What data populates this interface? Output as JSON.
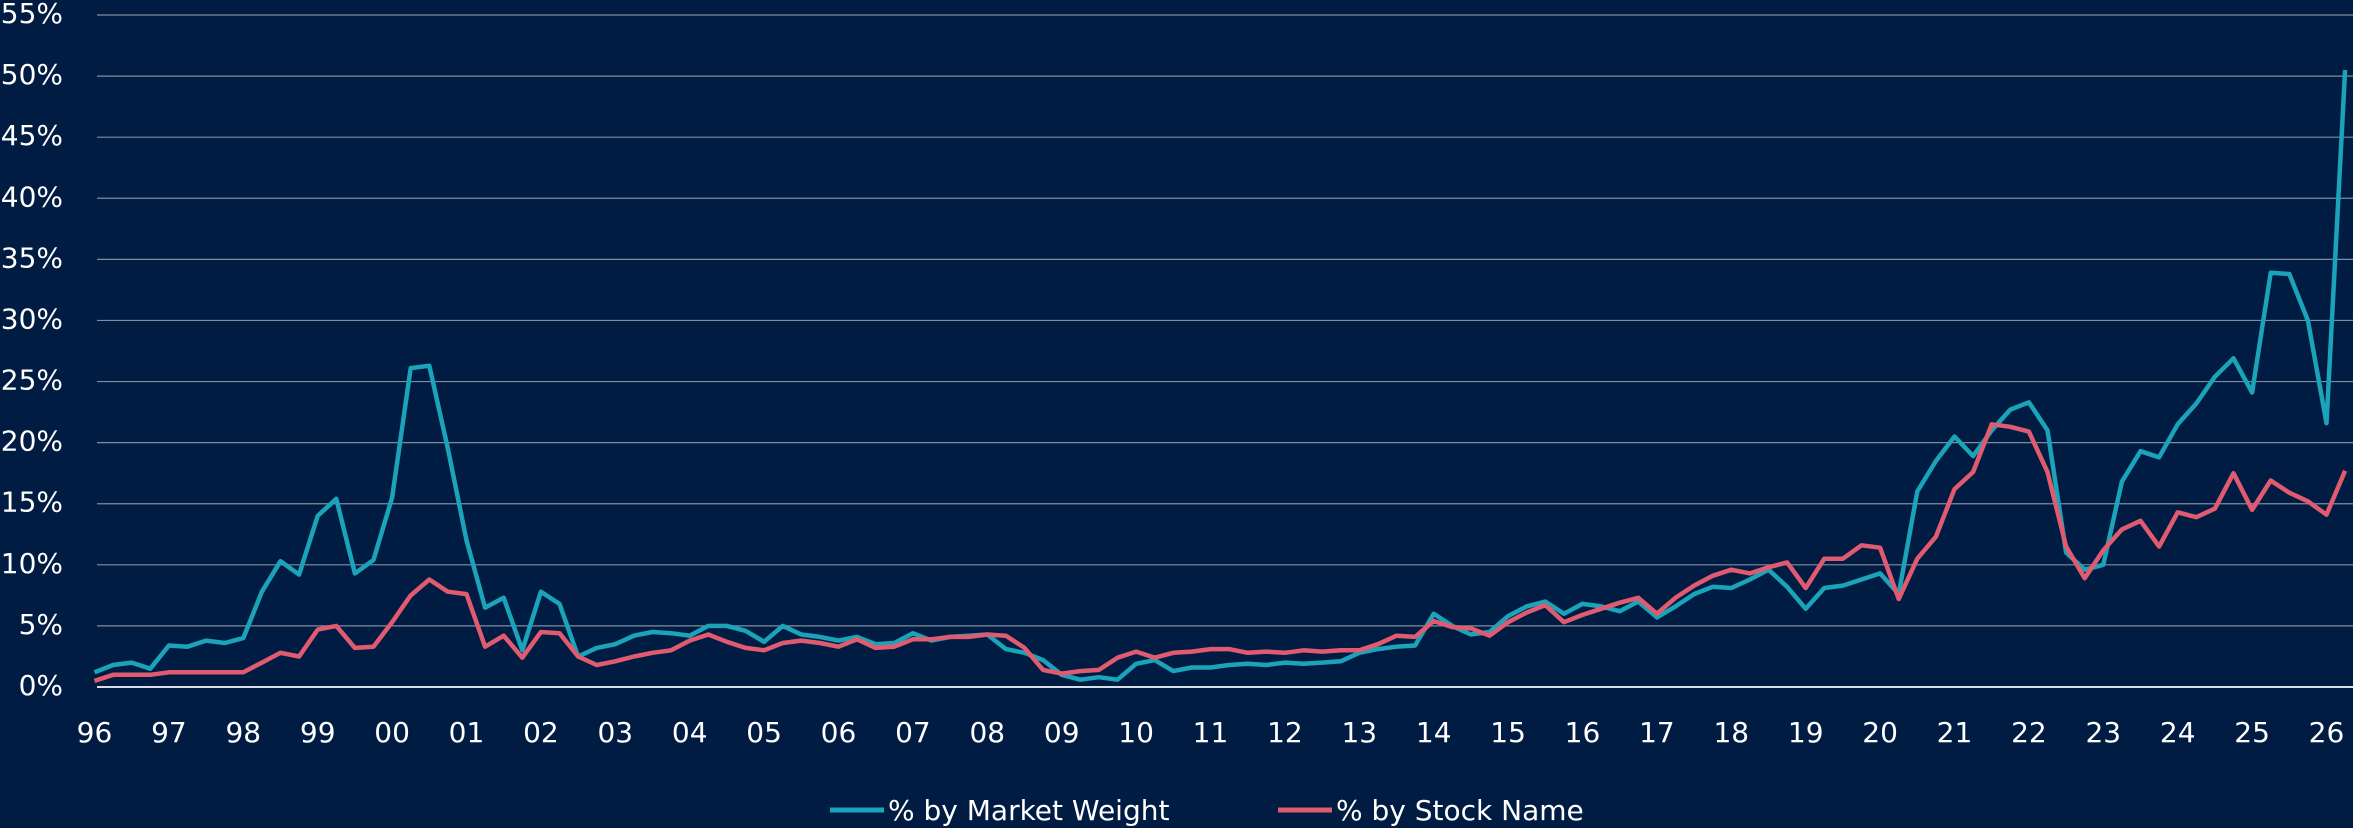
{
  "chart_data": {
    "type": "line",
    "categories": [
      "96",
      null,
      null,
      null,
      "97",
      null,
      null,
      null,
      "98",
      null,
      null,
      null,
      "99",
      null,
      null,
      null,
      "00",
      null,
      null,
      null,
      "01",
      null,
      null,
      null,
      "02",
      null,
      null,
      null,
      "03",
      null,
      null,
      null,
      "04",
      null,
      null,
      null,
      "05",
      null,
      null,
      null,
      "06",
      null,
      null,
      null,
      "07",
      null,
      null,
      null,
      "08",
      null,
      null,
      null,
      "09",
      null,
      null,
      null,
      "10",
      null,
      null,
      null,
      "11",
      null,
      null,
      null,
      "12",
      null,
      null,
      null,
      "13",
      null,
      null,
      null,
      "14",
      null,
      null,
      null,
      "15",
      null,
      null,
      null,
      "16",
      null,
      null,
      null,
      "17",
      null,
      null,
      null,
      "18",
      null,
      null,
      null,
      "19",
      null,
      null,
      null,
      "20",
      null,
      null,
      null,
      "21",
      null,
      null,
      null,
      "22",
      null,
      null,
      null,
      "23",
      null,
      null,
      null,
      "24",
      null,
      null,
      null,
      "25",
      null,
      null,
      null,
      "26",
      null
    ],
    "series": [
      {
        "name": "% by Market Weight",
        "color": "#1aa3b9",
        "values": [
          1.2,
          1.8,
          2.0,
          1.5,
          3.4,
          3.3,
          3.8,
          3.6,
          4.0,
          7.8,
          10.3,
          9.2,
          14.0,
          15.4,
          9.3,
          10.4,
          15.5,
          26.1,
          26.3,
          19.5,
          12.0,
          6.5,
          7.3,
          3.0,
          7.8,
          6.8,
          2.5,
          3.2,
          3.5,
          4.2,
          4.5,
          4.4,
          4.2,
          5.0,
          5.0,
          4.6,
          3.7,
          5.0,
          4.3,
          4.1,
          3.8,
          4.1,
          3.5,
          3.6,
          4.4,
          3.8,
          4.1,
          4.2,
          4.3,
          3.1,
          2.8,
          2.2,
          1.0,
          0.6,
          0.8,
          0.6,
          1.9,
          2.2,
          1.3,
          1.6,
          1.6,
          1.8,
          1.9,
          1.8,
          2.0,
          1.9,
          2.0,
          2.1,
          2.8,
          3.1,
          3.3,
          3.4,
          6.0,
          5.0,
          4.3,
          4.5,
          5.8,
          6.6,
          7.0,
          6.0,
          6.8,
          6.6,
          6.2,
          7.0,
          5.7,
          6.6,
          7.6,
          8.2,
          8.1,
          8.8,
          9.6,
          8.2,
          6.4,
          8.1,
          8.3,
          8.8,
          9.3,
          7.6,
          16.0,
          18.5,
          20.5,
          18.9,
          21.0,
          22.7,
          23.3,
          21.0,
          11.0,
          9.6,
          10.0,
          16.8,
          19.3,
          18.8,
          21.5,
          23.2,
          25.4,
          26.9,
          24.1,
          33.9,
          33.8,
          30.0,
          21.6,
          50.5
        ]
      },
      {
        "name": "% by Stock Name",
        "color": "#e05a70",
        "values": [
          0.5,
          1.0,
          1.0,
          1.0,
          1.2,
          1.2,
          1.2,
          1.2,
          1.2,
          2.0,
          2.8,
          2.5,
          4.7,
          5.0,
          3.2,
          3.3,
          5.3,
          7.5,
          8.8,
          7.8,
          7.6,
          3.3,
          4.2,
          2.4,
          4.5,
          4.4,
          2.5,
          1.8,
          2.1,
          2.5,
          2.8,
          3.0,
          3.8,
          4.3,
          3.7,
          3.2,
          3.0,
          3.6,
          3.8,
          3.6,
          3.3,
          3.9,
          3.2,
          3.3,
          3.9,
          3.9,
          4.1,
          4.1,
          4.3,
          4.2,
          3.2,
          1.4,
          1.1,
          1.3,
          1.4,
          2.4,
          2.9,
          2.4,
          2.8,
          2.9,
          3.1,
          3.1,
          2.8,
          2.9,
          2.8,
          3.0,
          2.9,
          3.0,
          3.0,
          3.5,
          4.2,
          4.1,
          5.4,
          4.9,
          4.8,
          4.2,
          5.3,
          6.1,
          6.7,
          5.3,
          5.9,
          6.4,
          6.9,
          7.3,
          6.0,
          7.3,
          8.3,
          9.1,
          9.6,
          9.3,
          9.8,
          10.2,
          8.1,
          10.5,
          10.5,
          11.6,
          11.4,
          7.2,
          10.5,
          12.3,
          16.2,
          17.6,
          21.5,
          21.3,
          20.9,
          17.6,
          11.5,
          8.9,
          11.2,
          12.9,
          13.6,
          11.5,
          14.3,
          13.9,
          14.6,
          17.5,
          14.5,
          16.9,
          15.9,
          15.2,
          14.1,
          17.7
        ]
      }
    ],
    "ylim": [
      0,
      55
    ],
    "yticks": [
      {
        "value": 0,
        "label": "0%"
      },
      {
        "value": 5,
        "label": "5%"
      },
      {
        "value": 10,
        "label": "10%"
      },
      {
        "value": 15,
        "label": "15%"
      },
      {
        "value": 20,
        "label": "20%"
      },
      {
        "value": 25,
        "label": "25%"
      },
      {
        "value": 30,
        "label": "30%"
      },
      {
        "value": 35,
        "label": "35%"
      },
      {
        "value": 40,
        "label": "40%"
      },
      {
        "value": 45,
        "label": "45%"
      },
      {
        "value": 50,
        "label": "50%"
      },
      {
        "value": 55,
        "label": "55%"
      }
    ],
    "grid": true,
    "legend": "bottom"
  }
}
